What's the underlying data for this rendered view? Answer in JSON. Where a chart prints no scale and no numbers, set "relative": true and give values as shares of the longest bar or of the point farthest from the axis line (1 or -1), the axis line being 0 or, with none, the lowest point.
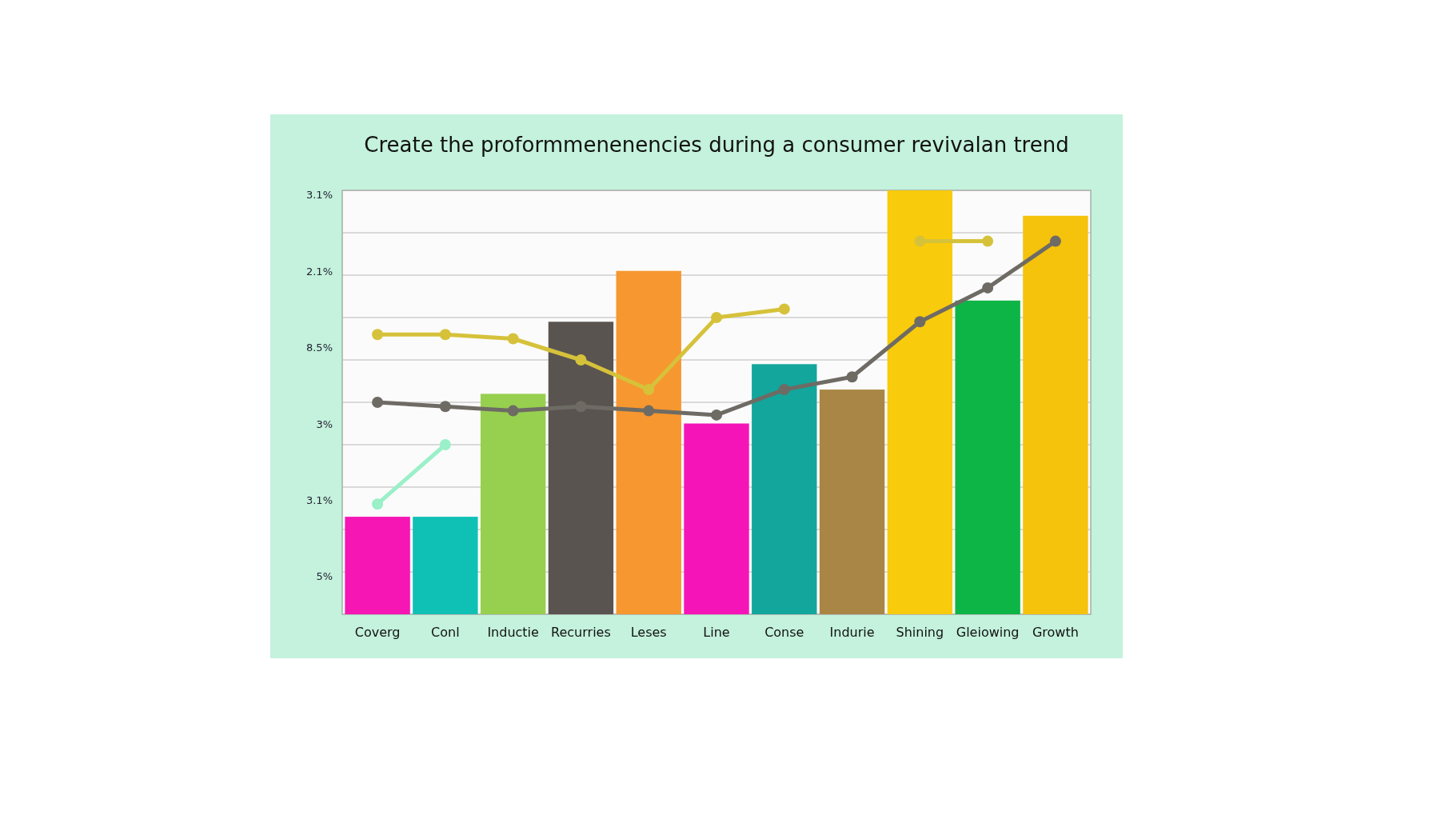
{
  "chart_data": {
    "type": "bar",
    "title": "Create the proformmenenencies during a consumer revivalan trend",
    "relative": true,
    "grid": "y",
    "marker": "circle",
    "categories": [
      "Coverg",
      "Conl",
      "Inductie",
      "Recurries",
      "Leses",
      "Line",
      "Conse",
      "Indurie",
      "Shining",
      "Gleiowing",
      "Growth"
    ],
    "annotations": [
      "3.1%",
      "2.1%",
      "8.5%",
      "3%",
      "3.1%",
      "5%"
    ],
    "series": [
      {
        "colors": [
          "#f516b4",
          "#0fc1b4",
          "#97cf4f",
          "#5a5450",
          "#f7972f",
          "#f514b8",
          "#13a69c",
          "#a98646",
          "#f8cb0c",
          "#0db546",
          "#f5c20c"
        ],
        "values": [
          0.23,
          0.23,
          0.52,
          0.69,
          0.81,
          0.45,
          0.59,
          0.53,
          1,
          0.74,
          0.94
        ]
      },
      {
        "type": "line",
        "color": "#d6c23a",
        "values": [
          0.66,
          0.66,
          0.65,
          0.6,
          0.53,
          0.7,
          0.72,
          null,
          0.88,
          0.88,
          null
        ]
      },
      {
        "type": "line",
        "color": "#9af0c8",
        "values": [
          0.26,
          0.4,
          null,
          null,
          null,
          null,
          null,
          null,
          null,
          null,
          null
        ]
      },
      {
        "type": "line",
        "color": "#6e6b64",
        "values": [
          0.5,
          0.49,
          0.48,
          0.49,
          0.48,
          0.47,
          0.53,
          0.56,
          0.69,
          0.77,
          0.88
        ]
      }
    ]
  }
}
